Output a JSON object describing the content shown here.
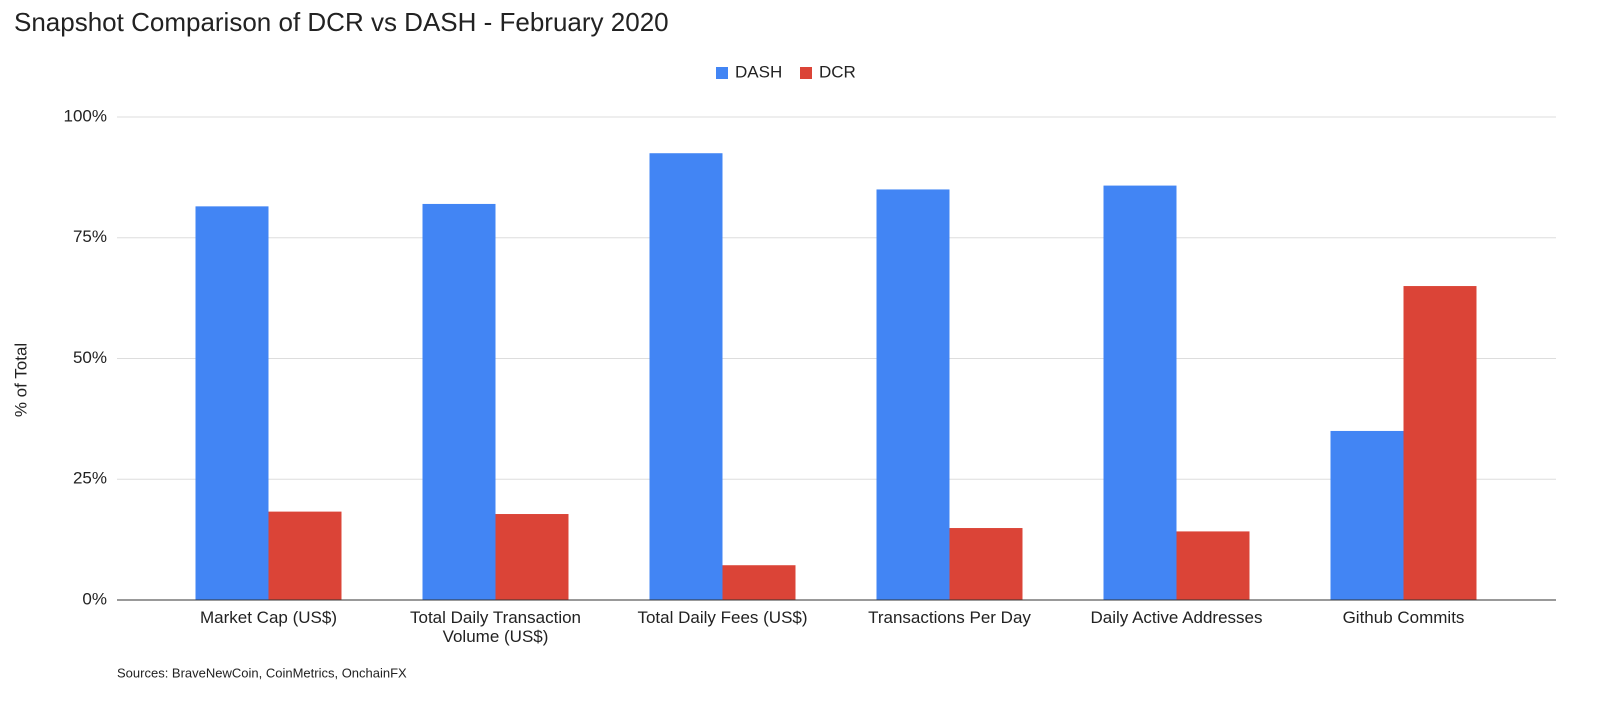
{
  "chart_data": {
    "type": "bar",
    "title": "Snapshot Comparison of DCR vs DASH - February 2020",
    "y_label": "% of Total",
    "source": "Sources: BraveNewCoin, CoinMetrics, OnchainFX",
    "categories": [
      "Market Cap (US$)",
      "Total Daily Transaction Volume (US$)",
      "Total Daily Fees (US$)",
      "Transactions Per Day",
      "Daily Active Addresses",
      "Github Commits"
    ],
    "series": [
      {
        "name": "DASH",
        "color": "#4285f4",
        "values": [
          81.5,
          82,
          92.5,
          85,
          85.8,
          35
        ]
      },
      {
        "name": "DCR",
        "color": "#db4437",
        "values": [
          18.3,
          17.8,
          7.2,
          14.9,
          14.2,
          65
        ]
      }
    ],
    "ylim": [
      0,
      100
    ],
    "yticks": [
      {
        "value": 0,
        "label": "0%"
      },
      {
        "value": 25,
        "label": "25%"
      },
      {
        "value": 50,
        "label": "50%"
      },
      {
        "value": 75,
        "label": "75%"
      },
      {
        "value": 100,
        "label": "100%"
      }
    ],
    "grid": true,
    "legend": "top"
  }
}
